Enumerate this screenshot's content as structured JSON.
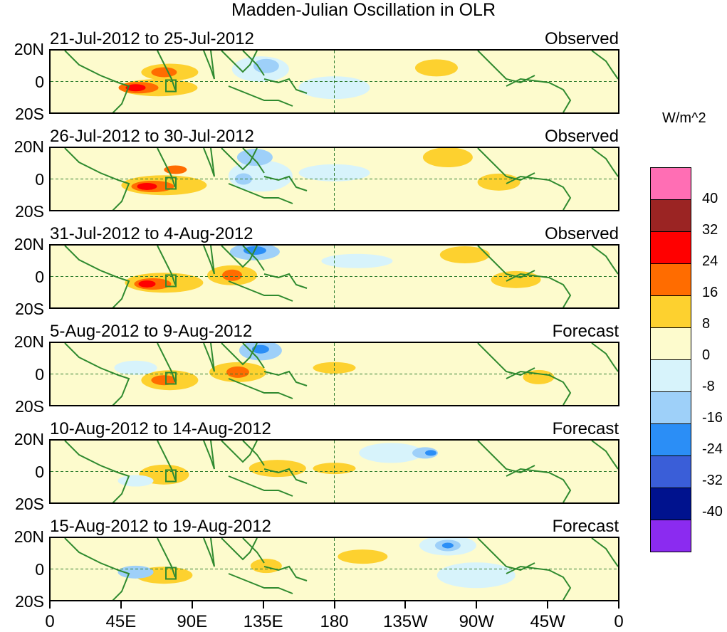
{
  "title": "Madden-Julian Oscillation in OLR",
  "chart_data": {
    "type": "heatmap",
    "title": "Madden-Julian Oscillation in OLR",
    "units": "W/m^2",
    "x_ticks": [
      "0",
      "45E",
      "90E",
      "135E",
      "180",
      "135W",
      "90W",
      "45W",
      "0"
    ],
    "y_ticks": [
      "20N",
      "0",
      "20S"
    ],
    "colorbar_labels": [
      "40",
      "32",
      "24",
      "16",
      "8",
      "0",
      "-8",
      "-16",
      "-24",
      "-32",
      "-40"
    ],
    "colorbar_colors": [
      "#ff6eb4",
      "#9b2423",
      "#ff0000",
      "#ff6c00",
      "#fdd12f",
      "#fdfbcd",
      "#d7f3fb",
      "#9ed0f9",
      "#2b8ef6",
      "#3a5ed8",
      "#00128e",
      "#8b2bf0"
    ],
    "panels": [
      {
        "period": "21-Jul-2012 to 25-Jul-2012",
        "kind": "Observed"
      },
      {
        "period": "26-Jul-2012 to 30-Jul-2012",
        "kind": "Observed"
      },
      {
        "period": "31-Jul-2012 to 4-Aug-2012",
        "kind": "Observed"
      },
      {
        "period": "5-Aug-2012 to 9-Aug-2012",
        "kind": "Forecast"
      },
      {
        "period": "10-Aug-2012 to 14-Aug-2012",
        "kind": "Forecast"
      },
      {
        "period": "15-Aug-2012 to 19-Aug-2012",
        "kind": "Forecast"
      }
    ]
  }
}
